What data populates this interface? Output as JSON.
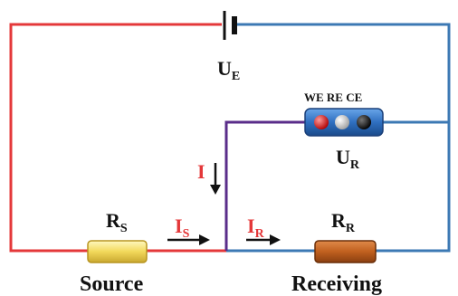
{
  "labels": {
    "ue_main": "U",
    "ue_sub": "E",
    "ur_main": "U",
    "ur_sub": "R",
    "i": "I",
    "is_main": "I",
    "is_sub": "S",
    "ir_main": "I",
    "ir_sub": "R",
    "rs_main": "R",
    "rs_sub": "S",
    "rr_main": "R",
    "rr_sub": "R",
    "source": "Source",
    "receiving": "Receiving",
    "electrodes": "WE RE CE"
  },
  "colors": {
    "source_wire": "#e4383a",
    "receiving_wire": "#3c79b4",
    "potentiostat_wire": "#5a2d8a",
    "current_label": "#e4383a",
    "text": "#111111",
    "rs_body": "#f7e27a",
    "rr_body": "#c8692a",
    "meter_body": "#2f6fc0",
    "we_terminal": "#d11a1a",
    "re_terminal": "#e8e8e8",
    "ce_terminal": "#111111"
  },
  "icons": {
    "battery": "battery-icon",
    "arrow": "arrow-icon"
  }
}
